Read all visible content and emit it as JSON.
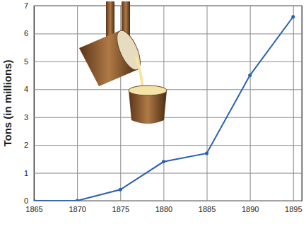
{
  "chart_data": {
    "type": "line",
    "y_label": "Tons (in millions)",
    "x": [
      1865,
      1870,
      1875,
      1880,
      1885,
      1890,
      1895
    ],
    "values": [
      0,
      0,
      0.4,
      1.4,
      1.7,
      4.5,
      6.6
    ],
    "color": "#2b5fae",
    "marker": "circle",
    "xlim": [
      1865,
      1896
    ],
    "xticks": [
      1865,
      1870,
      1875,
      1880,
      1885,
      1890,
      1895
    ],
    "ylim": [
      0,
      7
    ],
    "yticks": [
      0,
      1,
      2,
      3,
      4,
      5,
      6,
      7
    ],
    "grid": true
  }
}
